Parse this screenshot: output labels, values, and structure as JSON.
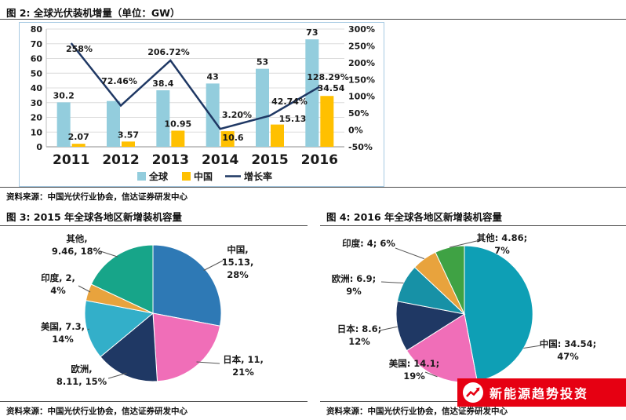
{
  "sources": {
    "fig2": "资料来源：中国光伏行业协会，信达证券研发中心",
    "fig3": "资料来源：中国光伏行业协会，信达证券研发中心",
    "fig4": "资料来源：中国光伏行业协会，信达证券研发中心"
  },
  "watermark": {
    "text": "新能源趋势投资",
    "bg_color": "#E60012",
    "icon": "trend-arrow-logo"
  },
  "chart_data": [
    {
      "id": "fig2",
      "type": "bar+line",
      "title": "图 2: 全球光伏装机增量（单位：GW）",
      "categories": [
        "2011",
        "2012",
        "2013",
        "2014",
        "2015",
        "2016"
      ],
      "series": [
        {
          "name": "全球",
          "type": "bar",
          "color": "#93CDDD",
          "values": [
            30.2,
            31.1,
            38.4,
            43,
            53,
            73
          ],
          "labels": [
            "30.2",
            "",
            "38.4",
            "43",
            "53",
            "73"
          ]
        },
        {
          "name": "中国",
          "type": "bar",
          "color": "#FFC000",
          "values": [
            2.07,
            3.57,
            10.95,
            10.6,
            15.13,
            34.54
          ],
          "labels": [
            "2.07",
            "3.57",
            "10.95",
            "10.6",
            "15.13",
            "34.54"
          ]
        },
        {
          "name": "增长率",
          "type": "line",
          "color": "#1F3864",
          "values": [
            258,
            72.46,
            206.72,
            3.2,
            42.74,
            128.29
          ],
          "labels": [
            "258%",
            "72.46%",
            "206.72%",
            "3.20%",
            "42.74%",
            "128.29%"
          ]
        }
      ],
      "axes": {
        "left": {
          "min": 0,
          "max": 80,
          "ticks": [
            0,
            10,
            20,
            30,
            40,
            50,
            60,
            70,
            80
          ]
        },
        "right": {
          "min": -50,
          "max": 300,
          "tick_values": [
            -50,
            0,
            50,
            100,
            150,
            200,
            250,
            300
          ],
          "tick_labels": [
            "-50%",
            "0%",
            "50%",
            "100%",
            "150%",
            "200%",
            "250%",
            "300%"
          ]
        }
      },
      "legend": [
        "全球",
        "中国",
        "增长率"
      ],
      "grid": true
    },
    {
      "id": "fig3",
      "type": "pie",
      "title": "图 3: 2015 年全球各地区新增装机容量",
      "slices": [
        {
          "name": "中国",
          "value": 15.13,
          "pct": 28,
          "color": "#2E79B5",
          "label_lines": [
            "中国,",
            "15.13,",
            "28%"
          ]
        },
        {
          "name": "日本",
          "value": 11,
          "pct": 21,
          "color": "#F06EB8",
          "label_lines": [
            "日本, 11,",
            "21%"
          ]
        },
        {
          "name": "欧洲",
          "value": 8.11,
          "pct": 15,
          "color": "#1F3864",
          "label_lines": [
            "欧洲,",
            "8.11, 15%"
          ]
        },
        {
          "name": "美国",
          "value": 7.3,
          "pct": 14,
          "color": "#33AFC9",
          "label_lines": [
            "美国, 7.3,",
            "14%"
          ]
        },
        {
          "name": "印度",
          "value": 2,
          "pct": 4,
          "color": "#E8A33D",
          "label_lines": [
            "印度, 2,",
            "4%"
          ]
        },
        {
          "name": "其他",
          "value": 9.46,
          "pct": 18,
          "color": "#17A589",
          "label_lines": [
            "其他,",
            "9.46, 18%"
          ]
        }
      ]
    },
    {
      "id": "fig4",
      "type": "pie",
      "title": "图 4: 2016 年全球各地区新增装机容量",
      "slices": [
        {
          "name": "中国",
          "value": 34.54,
          "pct": 47,
          "color": "#0E9FB5",
          "label_lines": [
            "中国: 34.54;",
            "47%"
          ]
        },
        {
          "name": "美国",
          "value": 14.1,
          "pct": 19,
          "color": "#F06EB8",
          "label_lines": [
            "美国: 14.1;",
            "19%"
          ]
        },
        {
          "name": "日本",
          "value": 8.6,
          "pct": 12,
          "color": "#1F3864",
          "label_lines": [
            "日本: 8.6;",
            "12%"
          ]
        },
        {
          "name": "欧洲",
          "value": 6.9,
          "pct": 9,
          "color": "#1791A6",
          "label_lines": [
            "欧洲: 6.9;",
            "9%"
          ]
        },
        {
          "name": "印度",
          "value": 4,
          "pct": 6,
          "color": "#E8A33D",
          "label_lines": [
            "印度: 4; 6%"
          ]
        },
        {
          "name": "其他",
          "value": 4.86,
          "pct": 7,
          "color": "#3FA244",
          "label_lines": [
            "其他: 4.86;",
            "7%"
          ]
        }
      ]
    }
  ]
}
